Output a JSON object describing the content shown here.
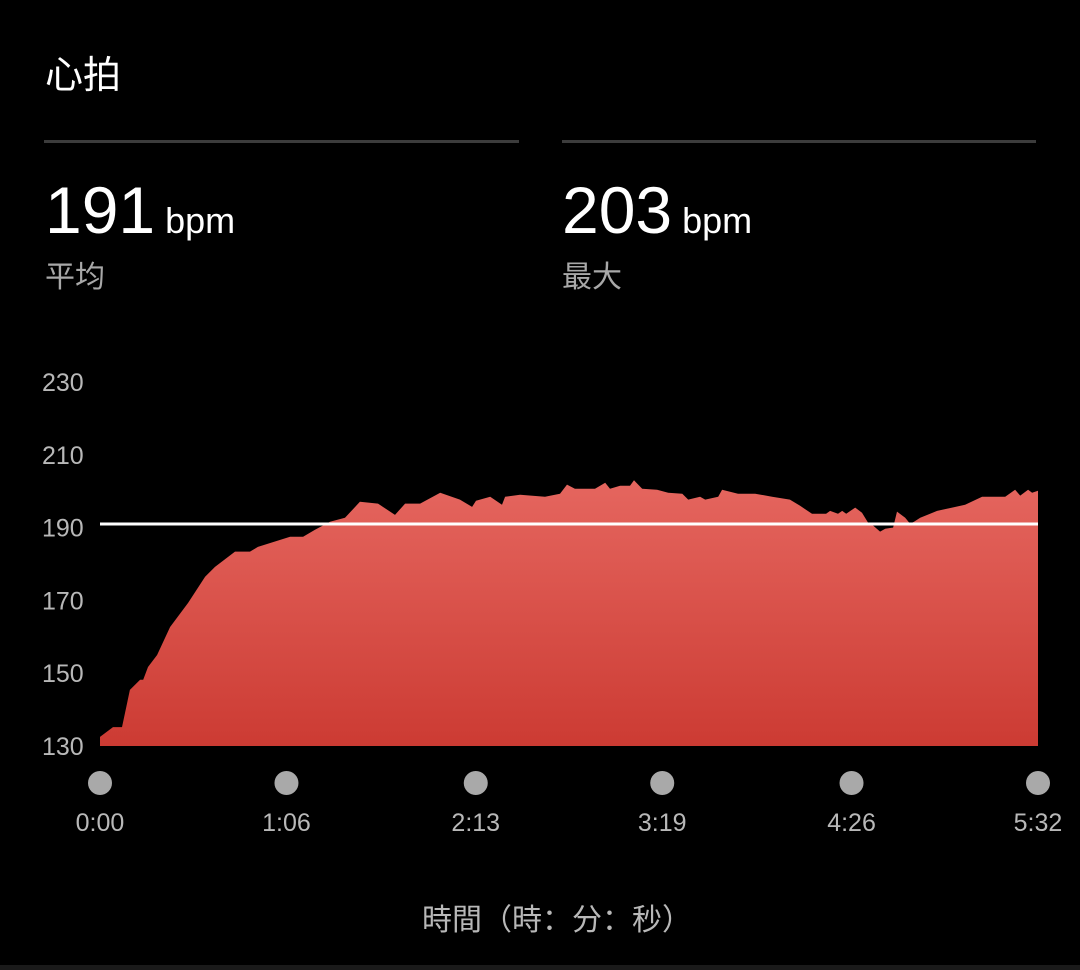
{
  "header": {
    "title": "心拍"
  },
  "stats": [
    {
      "value": "191",
      "unit": "bpm",
      "label": "平均"
    },
    {
      "value": "203",
      "unit": "bpm",
      "label": "最大"
    }
  ],
  "colors": {
    "fill_top": "#e5665f",
    "fill_bottom": "#cc3b33",
    "average_line": "#ffffff",
    "marker": "#a9a9a9"
  },
  "chart_data": {
    "type": "area",
    "xlabel": "時間（時：分：秒）",
    "ylabel": "",
    "ylim": [
      130,
      230
    ],
    "xlim": [
      0,
      332
    ],
    "y_ticks": [
      "230",
      "210",
      "190",
      "170",
      "150",
      "130"
    ],
    "x_ticks": [
      "0:00",
      "1:06",
      "2:13",
      "3:19",
      "4:26",
      "5:32"
    ],
    "x_tick_seconds": [
      0,
      66,
      133,
      199,
      266,
      332
    ],
    "average_line": 191,
    "grid": false,
    "x_seconds": [
      0,
      4.6,
      7.8,
      10.6,
      14.2,
      15.3,
      17,
      20.2,
      24.8,
      31.2,
      37.2,
      40.7,
      47.8,
      53.1,
      55.9,
      67.3,
      71.9,
      76.1,
      81.4,
      86.7,
      92,
      98.4,
      104.4,
      108,
      113.3,
      120.4,
      127.4,
      131.7,
      133.1,
      138.1,
      142.3,
      143.4,
      148.7,
      157.5,
      162.8,
      165.3,
      168.1,
      175.2,
      178.8,
      180.5,
      184.1,
      187.6,
      189,
      191.9,
      197.2,
      201.1,
      206.1,
      208.2,
      212.4,
      214.2,
      218.8,
      220.2,
      225.8,
      231.9,
      237.9,
      244.2,
      247.8,
      252,
      257,
      258.4,
      261.2,
      262.7,
      264.1,
      267.3,
      269.7,
      271.9,
      273.3,
      276.1,
      277.9,
      280.7,
      282.1,
      285,
      286.7,
      288.1,
      290.3,
      293.8,
      296.3,
      301.6,
      306.2,
      312.2,
      320.4,
      323.9,
      325.7,
      328.5,
      329.9,
      332
    ],
    "bpm": [
      132.5,
      135.2,
      135.2,
      145.4,
      148.2,
      148.2,
      151.7,
      155,
      162.7,
      169.3,
      176.5,
      179.2,
      183.4,
      183.4,
      184.7,
      187.5,
      187.5,
      189.4,
      191.6,
      192.7,
      197.1,
      196.6,
      193.5,
      196.6,
      196.6,
      199.6,
      197.7,
      195.7,
      197.4,
      198.5,
      196.3,
      198.5,
      199,
      198.5,
      199.3,
      201.8,
      200.7,
      200.7,
      202.3,
      200.7,
      201.5,
      201.5,
      203,
      200.7,
      200.4,
      199.6,
      199.3,
      197.7,
      198.5,
      197.7,
      198.5,
      200.4,
      199.3,
      199.3,
      198.5,
      197.7,
      196,
      193.8,
      193.8,
      194.6,
      193.8,
      194.6,
      193.8,
      195.5,
      194.1,
      191.3,
      190.8,
      188.9,
      189.7,
      190,
      194.4,
      192.7,
      191.1,
      191.6,
      192.7,
      193.8,
      194.6,
      195.5,
      196.3,
      198.5,
      198.5,
      200.4,
      198.8,
      200.4,
      199.6,
      200.1
    ]
  }
}
